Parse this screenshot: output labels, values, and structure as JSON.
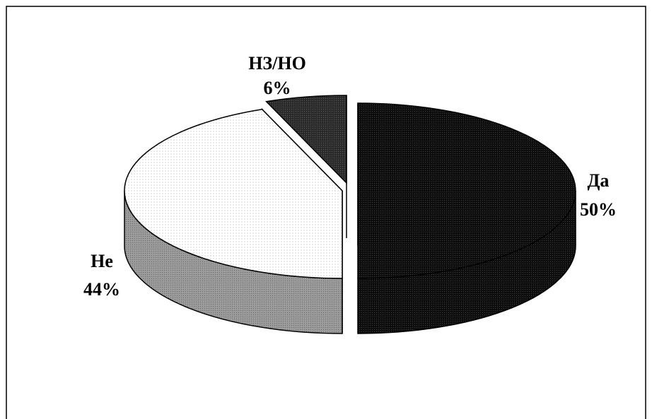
{
  "chart_data": {
    "type": "pie",
    "style": "3d-exploded",
    "categories": [
      "Да",
      "Не",
      "НЗ/НО"
    ],
    "values": [
      50,
      44,
      6
    ],
    "labels": [
      {
        "name": "Да",
        "pct": "50%"
      },
      {
        "name": "Не",
        "pct": "44%"
      },
      {
        "name": "НЗ/НО",
        "pct": "6%"
      }
    ],
    "colors": {
      "Да": "#111111",
      "Не": "#f7f7f7",
      "НЗ/НО": "#3a3a3a",
      "Не_side": "#8f8f8f",
      "Да_side": "#1a1a1a",
      "НЗ/НО_side": "#2e2e2e"
    }
  }
}
